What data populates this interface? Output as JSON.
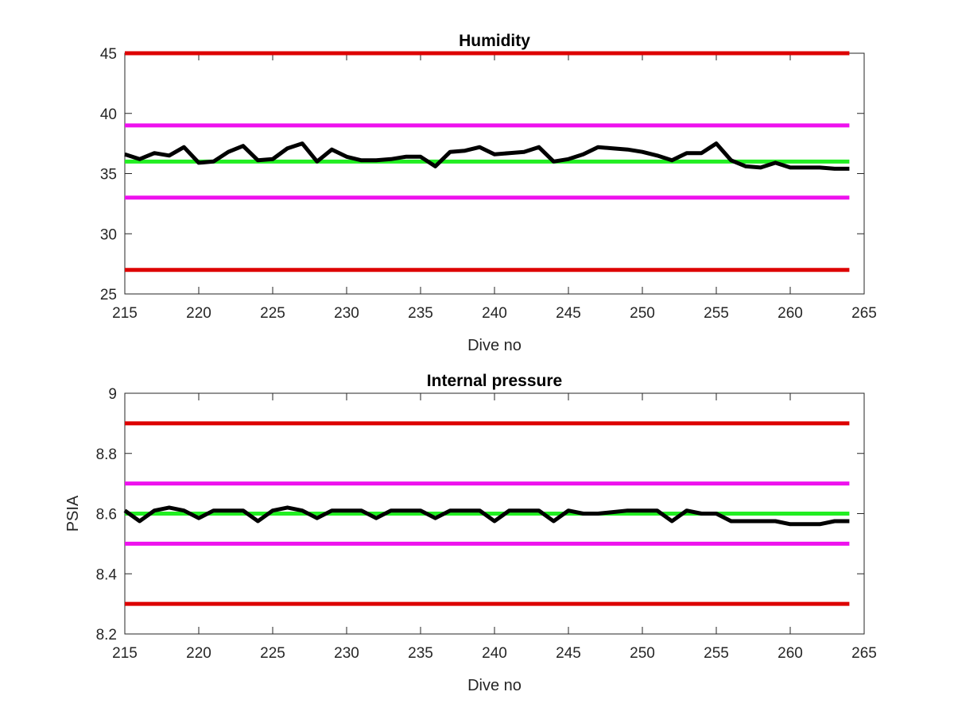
{
  "chart_data": [
    {
      "type": "line",
      "title": "Humidity",
      "xlabel": "Dive no",
      "ylabel": "",
      "xlim": [
        215,
        265
      ],
      "ylim": [
        25,
        45
      ],
      "xticks": [
        215,
        220,
        225,
        230,
        235,
        240,
        245,
        250,
        255,
        260,
        265
      ],
      "yticks": [
        25,
        30,
        35,
        40,
        45
      ],
      "ytick_labels": [
        "25",
        "30",
        "35",
        "40",
        "45"
      ],
      "grid": false,
      "reference_lines": [
        {
          "y": 45,
          "color": "#dd0000"
        },
        {
          "y": 39,
          "color": "#ee11ee"
        },
        {
          "y": 36,
          "color": "#22ee22"
        },
        {
          "y": 33,
          "color": "#ee11ee"
        },
        {
          "y": 27,
          "color": "#dd0000"
        }
      ],
      "series": [
        {
          "color": "#000000",
          "x": [
            215,
            216,
            217,
            218,
            219,
            220,
            221,
            222,
            223,
            224,
            225,
            226,
            227,
            228,
            229,
            230,
            231,
            232,
            233,
            234,
            235,
            236,
            237,
            238,
            239,
            240,
            241,
            242,
            243,
            244,
            245,
            246,
            247,
            248,
            249,
            250,
            251,
            252,
            253,
            254,
            255,
            256,
            257,
            258,
            259,
            260,
            261,
            262,
            263,
            264
          ],
          "y": [
            36.6,
            36.2,
            36.7,
            36.5,
            37.2,
            35.9,
            36.0,
            36.8,
            37.3,
            36.1,
            36.2,
            37.1,
            37.5,
            36.0,
            37.0,
            36.4,
            36.1,
            36.1,
            36.2,
            36.4,
            36.4,
            35.6,
            36.8,
            36.9,
            37.2,
            36.6,
            36.7,
            36.8,
            37.2,
            36.0,
            36.2,
            36.6,
            37.2,
            37.1,
            37.0,
            36.8,
            36.5,
            36.1,
            36.7,
            36.7,
            37.5,
            36.1,
            35.6,
            35.5,
            35.9,
            35.5,
            35.5,
            35.5,
            35.4,
            35.4
          ]
        }
      ]
    },
    {
      "type": "line",
      "title": "Internal pressure",
      "xlabel": "Dive no",
      "ylabel": "PSIA",
      "xlim": [
        215,
        265
      ],
      "ylim": [
        8.2,
        9
      ],
      "xticks": [
        215,
        220,
        225,
        230,
        235,
        240,
        245,
        250,
        255,
        260,
        265
      ],
      "yticks": [
        8.2,
        8.4,
        8.6,
        8.8,
        9
      ],
      "ytick_labels": [
        "8.2",
        "8.4",
        "8.6",
        "8.8",
        "9"
      ],
      "grid": false,
      "reference_lines": [
        {
          "y": 8.9,
          "color": "#dd0000"
        },
        {
          "y": 8.7,
          "color": "#ee11ee"
        },
        {
          "y": 8.6,
          "color": "#22ee22"
        },
        {
          "y": 8.5,
          "color": "#ee11ee"
        },
        {
          "y": 8.3,
          "color": "#dd0000"
        }
      ],
      "series": [
        {
          "color": "#000000",
          "x": [
            215,
            216,
            217,
            218,
            219,
            220,
            221,
            222,
            223,
            224,
            225,
            226,
            227,
            228,
            229,
            230,
            231,
            232,
            233,
            234,
            235,
            236,
            237,
            238,
            239,
            240,
            241,
            242,
            243,
            244,
            245,
            246,
            247,
            248,
            249,
            250,
            251,
            252,
            253,
            254,
            255,
            256,
            257,
            258,
            259,
            260,
            261,
            262,
            263,
            264
          ],
          "y": [
            8.61,
            8.575,
            8.61,
            8.62,
            8.61,
            8.585,
            8.61,
            8.61,
            8.61,
            8.575,
            8.61,
            8.62,
            8.61,
            8.585,
            8.61,
            8.61,
            8.61,
            8.585,
            8.61,
            8.61,
            8.61,
            8.585,
            8.61,
            8.61,
            8.61,
            8.575,
            8.61,
            8.61,
            8.61,
            8.575,
            8.61,
            8.6,
            8.6,
            8.605,
            8.61,
            8.61,
            8.61,
            8.575,
            8.61,
            8.6,
            8.6,
            8.575,
            8.575,
            8.575,
            8.575,
            8.565,
            8.565,
            8.565,
            8.575,
            8.575
          ]
        }
      ]
    }
  ]
}
